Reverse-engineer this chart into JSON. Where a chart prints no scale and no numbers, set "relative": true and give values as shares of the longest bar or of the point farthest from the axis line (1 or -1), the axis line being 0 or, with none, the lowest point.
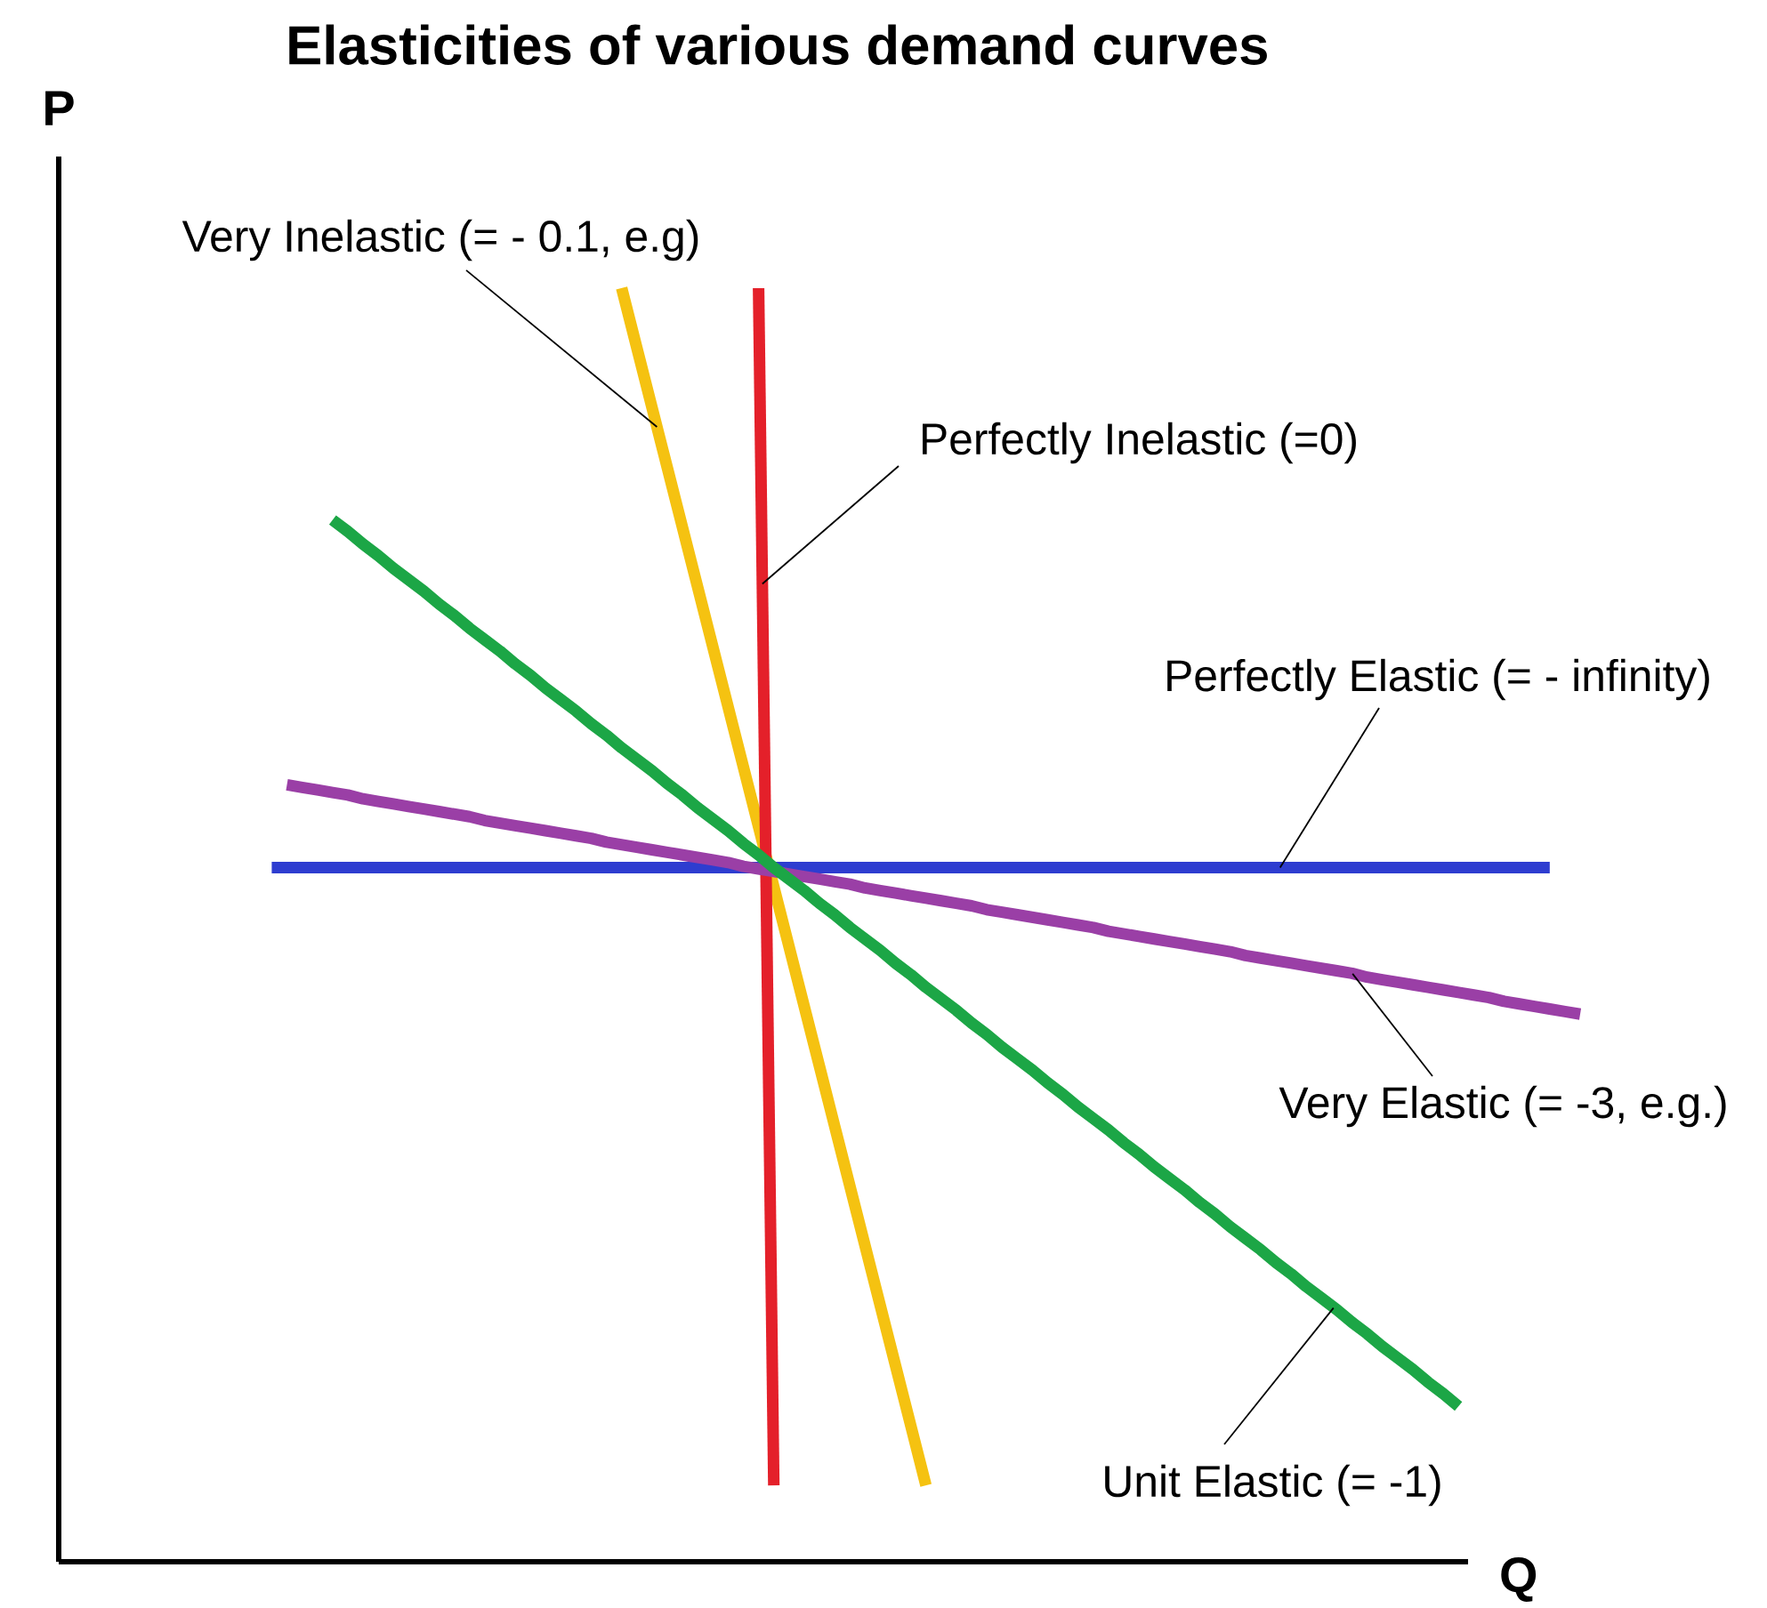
{
  "chart_data": {
    "type": "line",
    "title": "Elasticities of various demand curves",
    "xlabel": "Q",
    "ylabel": "P",
    "relative": true,
    "marker": "none",
    "line_style": "solid",
    "categories": [
      null,
      null,
      null,
      null,
      null,
      null,
      null,
      null,
      null,
      null,
      null,
      null,
      null,
      null,
      null,
      null,
      null,
      null,
      null,
      null,
      null,
      null,
      null,
      null,
      null,
      null,
      null,
      null,
      null,
      null,
      null,
      null,
      null,
      null,
      null,
      null,
      null,
      null,
      null,
      null,
      null,
      null,
      null,
      null,
      null,
      null,
      null,
      null,
      null,
      null,
      null,
      null,
      null,
      null,
      null,
      null,
      null,
      null,
      null,
      null,
      null,
      null,
      null,
      null,
      null,
      null,
      null,
      null,
      null,
      null,
      null,
      null,
      null,
      null,
      null,
      null,
      null,
      null,
      null,
      null,
      null,
      null,
      null,
      null,
      null,
      null,
      null,
      null,
      null,
      null,
      null,
      null,
      null,
      null,
      null,
      null,
      null,
      null,
      null,
      null,
      null
    ],
    "series": [
      {
        "name": "Very Inelastic (= - 0.1, e.g)",
        "color": "#f5c211",
        "values": [
          null,
          null,
          null,
          null,
          null,
          null,
          null,
          null,
          null,
          null,
          null,
          null,
          null,
          null,
          null,
          null,
          null,
          null,
          null,
          null,
          null,
          null,
          null,
          null,
          null,
          null,
          null,
          null,
          null,
          null,
          null,
          null,
          null,
          null,
          null,
          null,
          null,
          1.0,
          0.953,
          0.906,
          0.859,
          0.812,
          0.765,
          0.718,
          0.671,
          0.624,
          0.577,
          0.53,
          0.483,
          0.436,
          0.389,
          0.342,
          0.295,
          0.248,
          0.201,
          0.154,
          0.107,
          0.06,
          null,
          null,
          null,
          null,
          null,
          null,
          null,
          null,
          null,
          null,
          null,
          null,
          null,
          null,
          null,
          null,
          null,
          null,
          null,
          null,
          null,
          null,
          null,
          null,
          null,
          null,
          null,
          null,
          null,
          null,
          null,
          null,
          null,
          null,
          null,
          null,
          null,
          null,
          null,
          null,
          null,
          null,
          null
        ]
      },
      {
        "name": "Perfectly Inelastic (=0)",
        "color": "#e4202a",
        "values": [
          null,
          null,
          null,
          null,
          null,
          null,
          null,
          null,
          null,
          null,
          null,
          null,
          null,
          null,
          null,
          null,
          null,
          null,
          null,
          null,
          null,
          null,
          null,
          null,
          null,
          null,
          null,
          null,
          null,
          null,
          null,
          null,
          null,
          null,
          null,
          null,
          null,
          null,
          null,
          null,
          null,
          null,
          null,
          null,
          null,
          null,
          1.0,
          0.06,
          null,
          null,
          null,
          null,
          null,
          null,
          null,
          null,
          null,
          null,
          null,
          null,
          null,
          null,
          null,
          null,
          null,
          null,
          null,
          null,
          null,
          null,
          null,
          null,
          null,
          null,
          null,
          null,
          null,
          null,
          null,
          null,
          null,
          null,
          null,
          null,
          null,
          null,
          null,
          null,
          null,
          null,
          null,
          null,
          null,
          null,
          null,
          null,
          null,
          null,
          null,
          null,
          null
        ]
      },
      {
        "name": "Perfectly Elastic (= - infinity)",
        "color": "#2e3dd0",
        "values": [
          null,
          null,
          null,
          null,
          null,
          null,
          null,
          null,
          null,
          null,
          null,
          null,
          null,
          null,
          0.545,
          0.545,
          0.545,
          0.545,
          0.545,
          0.545,
          0.545,
          0.545,
          0.545,
          0.545,
          0.545,
          0.545,
          0.545,
          0.545,
          0.545,
          0.545,
          0.545,
          0.545,
          0.545,
          0.545,
          0.545,
          0.545,
          0.545,
          0.545,
          0.545,
          0.545,
          0.545,
          0.545,
          0.545,
          0.545,
          0.545,
          0.545,
          0.545,
          0.545,
          0.545,
          0.545,
          0.545,
          0.545,
          0.545,
          0.545,
          0.545,
          0.545,
          0.545,
          0.545,
          0.545,
          0.545,
          0.545,
          0.545,
          0.545,
          0.545,
          0.545,
          0.545,
          0.545,
          0.545,
          0.545,
          0.545,
          0.545,
          0.545,
          0.545,
          0.545,
          0.545,
          0.545,
          0.545,
          0.545,
          0.545,
          0.545,
          0.545,
          0.545,
          0.545,
          0.545,
          0.545,
          0.545,
          0.545,
          0.545,
          0.545,
          0.545,
          0.545,
          0.545,
          0.545,
          0.545,
          0.545,
          0.545,
          0.545,
          0.545,
          0.545,
          null,
          null
        ]
      },
      {
        "name": "Very Elastic (= -3, e.g.)",
        "color": "#9a3fa6",
        "values": [
          null,
          null,
          null,
          null,
          null,
          null,
          null,
          null,
          null,
          null,
          null,
          null,
          null,
          null,
          null,
          0.61,
          0.608,
          0.606,
          0.604,
          0.602,
          0.599,
          0.597,
          0.595,
          0.593,
          0.591,
          0.589,
          0.587,
          0.585,
          0.582,
          0.58,
          0.578,
          0.576,
          0.574,
          0.572,
          0.57,
          0.568,
          0.565,
          0.563,
          0.561,
          0.559,
          0.557,
          0.555,
          0.553,
          0.551,
          0.549,
          0.546,
          0.544,
          0.542,
          0.54,
          0.538,
          0.536,
          0.534,
          0.532,
          0.529,
          0.527,
          0.525,
          0.523,
          0.521,
          0.519,
          0.517,
          0.515,
          0.512,
          0.51,
          0.508,
          0.506,
          0.504,
          0.502,
          0.5,
          0.498,
          0.495,
          0.493,
          0.491,
          0.489,
          0.487,
          0.485,
          0.483,
          0.481,
          0.479,
          0.476,
          0.474,
          0.472,
          0.47,
          0.468,
          0.466,
          0.464,
          0.462,
          0.459,
          0.457,
          0.455,
          0.453,
          0.451,
          0.449,
          0.447,
          0.445,
          0.443,
          0.44,
          0.438,
          0.436,
          0.434,
          0.432,
          0.43
        ]
      },
      {
        "name": "Unit Elastic (= -1)",
        "color": "#1ca646",
        "values": [
          null,
          null,
          null,
          null,
          null,
          null,
          null,
          null,
          null,
          null,
          null,
          null,
          null,
          null,
          null,
          null,
          null,
          null,
          0.818,
          0.809,
          0.799,
          0.79,
          0.78,
          0.771,
          0.762,
          0.752,
          0.743,
          0.733,
          0.724,
          0.715,
          0.705,
          0.696,
          0.686,
          0.677,
          0.668,
          0.658,
          0.649,
          0.639,
          0.63,
          0.621,
          0.611,
          0.602,
          0.592,
          0.583,
          0.574,
          0.564,
          0.555,
          0.545,
          0.536,
          0.527,
          0.517,
          0.508,
          0.498,
          0.489,
          0.48,
          0.47,
          0.461,
          0.451,
          0.442,
          0.433,
          0.423,
          0.414,
          0.404,
          0.395,
          0.386,
          0.376,
          0.367,
          0.357,
          0.348,
          0.339,
          0.329,
          0.32,
          0.31,
          0.301,
          0.292,
          0.282,
          0.273,
          0.263,
          0.254,
          0.245,
          0.235,
          0.226,
          0.216,
          0.207,
          0.198,
          0.188,
          0.179,
          0.169,
          0.16,
          0.151,
          0.141,
          0.132,
          0.122,
          null,
          null,
          null,
          null,
          null,
          null,
          null,
          null
        ]
      }
    ]
  }
}
